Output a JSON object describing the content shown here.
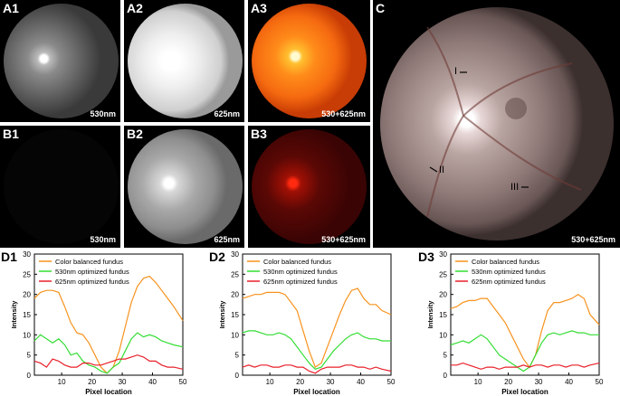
{
  "panels": {
    "a1": {
      "label": "A1",
      "wavelength": "530nm"
    },
    "a2": {
      "label": "A2",
      "wavelength": "625nm"
    },
    "a3": {
      "label": "A3",
      "wavelength": "530+625nm"
    },
    "b1": {
      "label": "B1",
      "wavelength": "530nm"
    },
    "b2": {
      "label": "B2",
      "wavelength": "625nm"
    },
    "b3": {
      "label": "B3",
      "wavelength": "530+625nm"
    },
    "c": {
      "label": "C",
      "wavelength": "530+625nm",
      "markers": [
        "I",
        "II",
        "III"
      ]
    }
  },
  "colors": {
    "orange": "#F7931E",
    "green": "#33DD33",
    "red": "#E8202A"
  },
  "chart_data": [
    {
      "label": "D1",
      "type": "line",
      "xlabel": "Pixel location",
      "ylabel": "Intensity",
      "xlim": [
        1,
        50
      ],
      "ylim": [
        0,
        30
      ],
      "xticks": [
        10,
        20,
        30,
        40,
        50
      ],
      "yticks": [
        0,
        5,
        10,
        15,
        20,
        25,
        30
      ],
      "legend": [
        "Color balanced fundus",
        "530nm optimized fundus",
        "625nm optimized fundus"
      ],
      "series": [
        {
          "name": "Color balanced fundus",
          "color": "orange",
          "x": [
            1,
            3,
            5,
            7,
            9,
            11,
            13,
            15,
            17,
            19,
            21,
            23,
            25,
            27,
            29,
            31,
            33,
            35,
            37,
            39,
            41,
            43,
            45,
            47,
            50
          ],
          "y": [
            19,
            20.5,
            21,
            21,
            20.5,
            17,
            13,
            10.5,
            10,
            8,
            5,
            2,
            0.5,
            2,
            6,
            12,
            18,
            22,
            24,
            24.5,
            23,
            21,
            19,
            17,
            13.5
          ]
        },
        {
          "name": "530nm optimized fundus",
          "color": "green",
          "x": [
            1,
            3,
            5,
            7,
            9,
            11,
            13,
            15,
            17,
            19,
            21,
            23,
            25,
            27,
            29,
            31,
            33,
            35,
            37,
            39,
            41,
            43,
            45,
            47,
            50
          ],
          "y": [
            8.5,
            10,
            9,
            8,
            9,
            7.5,
            5,
            5.5,
            3.5,
            2.5,
            2,
            1,
            0.5,
            2,
            3,
            6,
            9,
            10.5,
            9.5,
            10,
            9.5,
            8.5,
            8,
            7.5,
            7
          ]
        },
        {
          "name": "625nm optimized fundus",
          "color": "red",
          "x": [
            1,
            3,
            5,
            7,
            9,
            11,
            13,
            15,
            17,
            19,
            21,
            23,
            25,
            27,
            29,
            31,
            33,
            35,
            37,
            39,
            41,
            43,
            45,
            47,
            50
          ],
          "y": [
            3.5,
            3,
            2,
            4,
            3.5,
            2.5,
            2,
            2,
            3,
            3,
            2.5,
            2.5,
            3,
            3.5,
            4,
            4,
            4.5,
            5,
            4.5,
            3.5,
            3.5,
            2.5,
            2,
            2,
            1.5
          ]
        }
      ]
    },
    {
      "label": "D2",
      "type": "line",
      "xlabel": "Pixel location",
      "ylabel": "Intensity",
      "xlim": [
        1,
        50
      ],
      "ylim": [
        0,
        30
      ],
      "xticks": [
        10,
        20,
        30,
        40,
        50
      ],
      "yticks": [
        0,
        5,
        10,
        15,
        20,
        25,
        30
      ],
      "legend": [
        "Color balanced fundus",
        "530nm optimized fundus",
        "625nm optimized fundus"
      ],
      "series": [
        {
          "name": "Color balanced fundus",
          "color": "orange",
          "x": [
            1,
            3,
            5,
            7,
            9,
            11,
            13,
            15,
            17,
            19,
            21,
            23,
            25,
            27,
            29,
            31,
            33,
            35,
            37,
            39,
            41,
            43,
            45,
            47,
            50
          ],
          "y": [
            19,
            19.5,
            20,
            20,
            20.5,
            20.5,
            20.5,
            20,
            18,
            16,
            11,
            6,
            2,
            3,
            7,
            11,
            15,
            18.5,
            21,
            21.5,
            19,
            17.5,
            17.5,
            16,
            15
          ]
        },
        {
          "name": "530nm optimized fundus",
          "color": "green",
          "x": [
            1,
            3,
            5,
            7,
            9,
            11,
            13,
            15,
            17,
            19,
            21,
            23,
            25,
            27,
            29,
            31,
            33,
            35,
            37,
            39,
            41,
            43,
            45,
            47,
            50
          ],
          "y": [
            10.5,
            11,
            11,
            10.5,
            10,
            10,
            10.5,
            10,
            9,
            7,
            5,
            3,
            1.5,
            2,
            4,
            6,
            7.5,
            9,
            10,
            10.5,
            9.5,
            9,
            9,
            8.5,
            8.5
          ]
        },
        {
          "name": "625nm optimized fundus",
          "color": "red",
          "x": [
            1,
            3,
            5,
            7,
            9,
            11,
            13,
            15,
            17,
            19,
            21,
            23,
            25,
            27,
            29,
            31,
            33,
            35,
            37,
            39,
            41,
            43,
            45,
            47,
            50
          ],
          "y": [
            2,
            2.5,
            2,
            2.5,
            2.5,
            2,
            2,
            2.5,
            2.5,
            2,
            2,
            1,
            0.5,
            1.5,
            2,
            2,
            2,
            2.5,
            2.5,
            2,
            2,
            1.5,
            2,
            1.5,
            1
          ]
        }
      ]
    },
    {
      "label": "D3",
      "type": "line",
      "xlabel": "Pixel location",
      "ylabel": "Intensity",
      "xlim": [
        1,
        50
      ],
      "ylim": [
        0,
        30
      ],
      "xticks": [
        10,
        20,
        30,
        40,
        50
      ],
      "yticks": [
        0,
        5,
        10,
        15,
        20,
        25,
        30
      ],
      "legend": [
        "Color balanced fundus",
        "530nm optimized fundus",
        "625nm optimized fundus"
      ],
      "series": [
        {
          "name": "Color balanced fundus",
          "color": "orange",
          "x": [
            1,
            3,
            5,
            7,
            9,
            11,
            13,
            15,
            17,
            19,
            21,
            23,
            25,
            27,
            29,
            31,
            33,
            35,
            37,
            39,
            41,
            43,
            45,
            47,
            50
          ],
          "y": [
            16.5,
            17,
            18,
            18.5,
            18.5,
            19,
            19,
            17,
            15,
            13,
            10,
            7,
            4,
            2,
            5,
            11,
            16,
            18,
            18,
            18.5,
            19,
            20,
            19,
            15,
            12.5
          ]
        },
        {
          "name": "530nm optimized fundus",
          "color": "green",
          "x": [
            1,
            3,
            5,
            7,
            9,
            11,
            13,
            15,
            17,
            19,
            21,
            23,
            25,
            27,
            29,
            31,
            33,
            35,
            37,
            39,
            41,
            43,
            45,
            47,
            50
          ],
          "y": [
            7.5,
            8,
            8.5,
            8,
            9,
            10,
            9,
            7,
            5,
            4,
            3,
            2,
            1,
            2,
            5,
            8,
            10,
            10.5,
            10,
            10.5,
            11,
            10.5,
            10.5,
            10,
            10
          ]
        },
        {
          "name": "625nm optimized fundus",
          "color": "red",
          "x": [
            1,
            3,
            5,
            7,
            9,
            11,
            13,
            15,
            17,
            19,
            21,
            23,
            25,
            27,
            29,
            31,
            33,
            35,
            37,
            39,
            41,
            43,
            45,
            47,
            50
          ],
          "y": [
            2.5,
            2.5,
            3,
            2.5,
            2,
            1.5,
            2,
            2,
            1.5,
            2,
            2,
            2,
            2.5,
            2,
            2.5,
            2.5,
            2,
            2.5,
            2.5,
            2,
            2.5,
            2.5,
            2,
            2.5,
            3
          ]
        }
      ]
    }
  ]
}
